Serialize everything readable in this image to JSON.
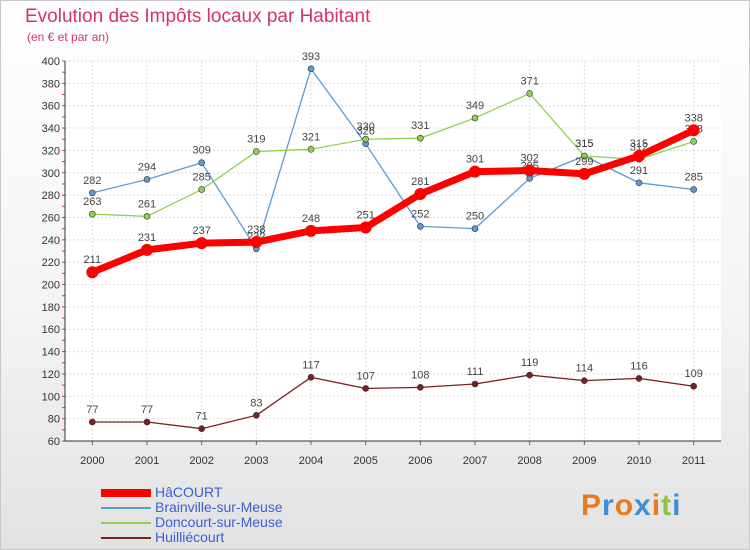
{
  "chart_data": {
    "type": "line",
    "title": "Evolution des Impôts locaux par Habitant",
    "subtitle": "(en € et par an)",
    "xlabel": "",
    "ylabel": "",
    "ylim": [
      60,
      400
    ],
    "yticks": [
      60,
      80,
      100,
      120,
      140,
      160,
      180,
      200,
      220,
      240,
      260,
      280,
      300,
      320,
      340,
      360,
      380,
      400
    ],
    "categories": [
      "2000",
      "2001",
      "2002",
      "2003",
      "2004",
      "2005",
      "2006",
      "2007",
      "2008",
      "2009",
      "2010",
      "2011"
    ],
    "series": [
      {
        "name": "Brainville-sur-Meuse",
        "color": "#5b9bd5",
        "values": [
          282,
          294,
          309,
          232,
          393,
          326,
          252,
          250,
          295,
          315,
          291,
          285
        ]
      },
      {
        "name": "Doncourt-sur-Meuse",
        "color": "#8fd14f",
        "values": [
          263,
          261,
          285,
          319,
          321,
          330,
          331,
          349,
          371,
          315,
          312,
          328
        ]
      },
      {
        "name": "Huilliécourt",
        "color": "#7b1f1f",
        "values": [
          77,
          77,
          71,
          83,
          117,
          107,
          108,
          111,
          119,
          114,
          116,
          109
        ]
      },
      {
        "name": "HâCOURT",
        "color": "#ff0000",
        "values": [
          211,
          231,
          237,
          238,
          248,
          251,
          281,
          301,
          302,
          299,
          315,
          338
        ]
      }
    ],
    "legend_order": [
      "HâCOURT",
      "Brainville-sur-Meuse",
      "Doncourt-sur-Meuse",
      "Huilliécourt"
    ],
    "legend_position": "bottom-left"
  },
  "logo": {
    "text": "Proxiti",
    "colors": [
      "#e57c1f",
      "#3a8fd6",
      "#e57c1f",
      "#3a8fd6",
      "#e57c1f",
      "#8fc43f",
      "#3a8fd6"
    ]
  }
}
